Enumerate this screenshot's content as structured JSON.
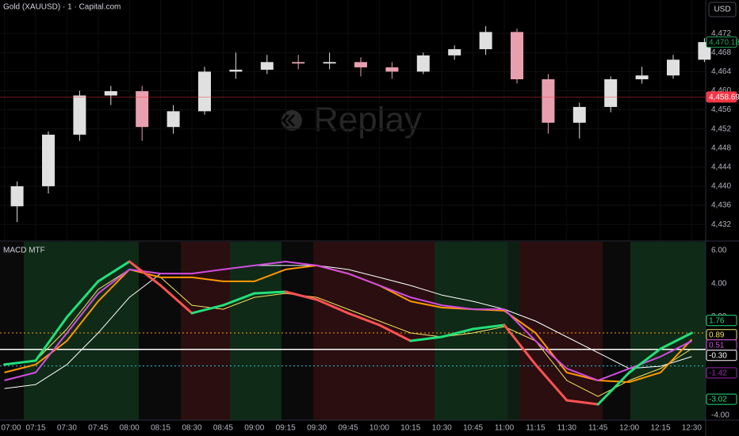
{
  "toolbar": {
    "currency": "USD"
  },
  "chart_data": [
    {
      "type": "candlestick",
      "title": "Gold (XAUUSD) · 1 · Capital.com",
      "watermark": "Replay",
      "categories": [
        "07:00",
        "07:15",
        "07:30",
        "07:45",
        "08:00",
        "08:15",
        "08:30",
        "08:45",
        "09:00",
        "09:15",
        "09:30",
        "09:45",
        "10:00",
        "10:15",
        "10:30",
        "10:45",
        "11:00",
        "11:15",
        "11:30",
        "11:45",
        "12:00",
        "12:15",
        "12:30"
      ],
      "open": [
        4435.8,
        4440,
        4450.8,
        4459,
        4459.9,
        4452.4,
        4455.7,
        4464,
        4464.4,
        4466,
        4465.7,
        4466,
        4464.9,
        4464,
        4467.4,
        4468.7,
        4472.3,
        4462.4,
        4453.3,
        4456.6,
        4462.4,
        4463.2,
        4466.5
      ],
      "high": [
        4441,
        4451.5,
        4460,
        4461,
        4461,
        4457,
        4465,
        4468,
        4467.5,
        4467.5,
        4468,
        4467,
        4466,
        4468,
        4469.5,
        4473.5,
        4473,
        4463.5,
        4457.5,
        4463,
        4465,
        4467.5,
        4471
      ],
      "low": [
        4432.5,
        4438.5,
        4449.5,
        4457,
        4449.5,
        4451,
        4455,
        4462.5,
        4463.5,
        4464.5,
        4464.5,
        4463,
        4462.5,
        4463.5,
        4466.5,
        4467.5,
        4461.5,
        4451,
        4450,
        4455.5,
        4461.5,
        4462.5,
        4466
      ],
      "close": [
        4440,
        4450.8,
        4459,
        4459.9,
        4452.4,
        4455.7,
        4464,
        4464.4,
        4466,
        4465.7,
        4466,
        4464.9,
        4464,
        4467.4,
        4468.7,
        4472.3,
        4462.4,
        4453.3,
        4456.6,
        4462.4,
        4463.2,
        4466.5,
        4470.18
      ],
      "up_color": "#e0e0e0",
      "down_color": "#e8a0b0",
      "ylim": [
        4428.7,
        4479
      ],
      "yticks": [
        {
          "value": 4432,
          "label": "4,432"
        },
        {
          "value": 4436,
          "label": "4,436"
        },
        {
          "value": 4440,
          "label": "4,440"
        },
        {
          "value": 4444,
          "label": "4,444"
        },
        {
          "value": 4448,
          "label": "4,448"
        },
        {
          "value": 4452,
          "label": "4,452"
        },
        {
          "value": 4456,
          "label": "4,456"
        },
        {
          "value": 4460,
          "label": "4,460"
        },
        {
          "value": 4464,
          "label": "4,464"
        },
        {
          "value": 4468,
          "label": "4,468"
        },
        {
          "value": 4472,
          "label": "4,472"
        }
      ],
      "grid": true,
      "price_markers": [
        {
          "value": 4470.18,
          "label": "4,470.18",
          "color": "#26a65b",
          "filled": false
        },
        {
          "value": 4458.69,
          "label": "4,458.69",
          "color": "#f23645",
          "filled": true,
          "line": true
        }
      ]
    },
    {
      "type": "line",
      "title": "MACD MTF",
      "ylim": [
        -4.29,
        6.53
      ],
      "yticks": [
        {
          "value": 6,
          "label": "6.00"
        },
        {
          "value": 4,
          "label": "4.00"
        },
        {
          "value": 2,
          "label": "2.00"
        },
        {
          "value": -4,
          "label": "-4.00"
        }
      ],
      "hlines": [
        {
          "value": 1,
          "color": "#ff9800",
          "dash": "2 3"
        },
        {
          "value": -1,
          "color": "#26c6da",
          "dash": "2 3"
        },
        {
          "value": 0,
          "color": "#ffffff",
          "dash": ""
        }
      ],
      "series": [
        {
          "color": "#ffffff",
          "width": 1,
          "values": [
            -2.37,
            -2.13,
            -0.92,
            1.0,
            3.16,
            4.6,
            4.6,
            4.85,
            5.09,
            5.09,
            5.09,
            4.85,
            4.37,
            3.88,
            3.3,
            2.92,
            2.44,
            1.72,
            0.76,
            -0.2,
            -1.16,
            -1.02,
            -0.44
          ]
        },
        {
          "color": "#f5e663",
          "width": 1,
          "values": [
            -0.92,
            -0.68,
            1.24,
            3.64,
            4.85,
            4.37,
            2.68,
            2.44,
            3.16,
            3.4,
            3.16,
            2.44,
            1.72,
            1.0,
            0.76,
            1.0,
            1.38,
            0.52,
            -1.88,
            -2.85,
            -1.88,
            -1.16,
            0.04
          ]
        },
        {
          "color": "#ff9800",
          "width": 2,
          "values": [
            -1.4,
            -0.92,
            0.52,
            2.92,
            4.85,
            4.37,
            4.37,
            4.13,
            4.13,
            4.85,
            5.09,
            4.6,
            3.88,
            2.92,
            2.54,
            2.44,
            2.35,
            1.0,
            -1.4,
            -1.88,
            -1.98,
            -1.4,
            0.6
          ]
        },
        {
          "color": "#d24de0",
          "width": 2,
          "values": [
            -1.88,
            -1.4,
            1.0,
            3.4,
            4.85,
            4.6,
            4.6,
            4.85,
            5.09,
            5.33,
            5.09,
            4.6,
            3.88,
            3.16,
            2.68,
            2.44,
            2.44,
            0.52,
            -1.16,
            -1.88,
            -1.16,
            -0.44,
            0.51
          ]
        },
        {
          "color": "#22e07a",
          "falling_color": "#ff5252",
          "width": 3,
          "values": [
            -0.92,
            -0.68,
            1.96,
            4.13,
            5.33,
            3.88,
            2.2,
            2.68,
            3.4,
            3.5,
            3.02,
            2.2,
            1.48,
            0.52,
            0.76,
            1.24,
            1.48,
            -0.92,
            -3.09,
            -3.33,
            -1.4,
            0.04,
            1.0
          ]
        }
      ],
      "price_markers": [
        {
          "value": 1.76,
          "color": "#22e07a"
        },
        {
          "value": 0.89,
          "color": "#f5e663"
        },
        {
          "value": 0.51,
          "color": "#d24de0"
        },
        {
          "value": -0.3,
          "label": "-0.30",
          "color": "#ffffff"
        },
        {
          "value": -1.42,
          "color": "#9c27b0"
        },
        {
          "value": -3.02,
          "color": "#22e07a"
        }
      ]
    }
  ]
}
